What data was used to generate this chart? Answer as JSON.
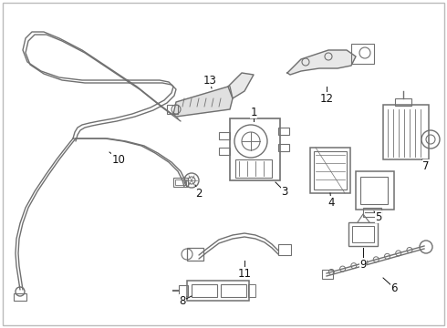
{
  "background_color": "#ffffff",
  "border_color": "#cccccc",
  "line_color": "#707070",
  "label_color": "#111111",
  "label_fontsize": 8.5,
  "fig_width": 4.9,
  "fig_height": 3.6,
  "dpi": 100
}
